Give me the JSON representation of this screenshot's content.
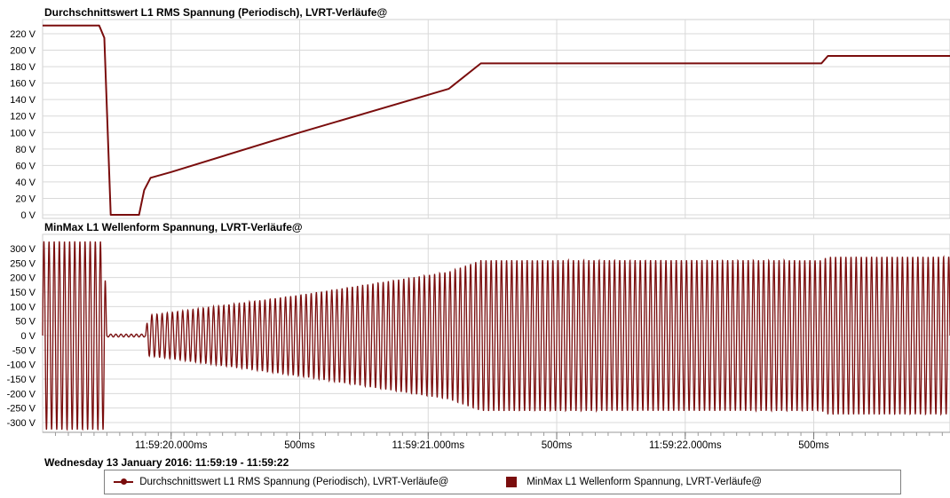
{
  "chart_data": [
    {
      "type": "line",
      "title": "Durchschnittswert L1 RMS Spannung (Periodisch), LVRT-Verläufe@",
      "y_unit": "V",
      "ylim": [
        0,
        230
      ],
      "y_ticks": [
        "0 V",
        "20 V",
        "40 V",
        "60 V",
        "80 V",
        "100 V",
        "120 V",
        "140 V",
        "160 V",
        "180 V",
        "200 V",
        "220 V"
      ],
      "grid": true,
      "series": [
        {
          "name": "Durchschnittswert L1 RMS Spannung (Periodisch), LVRT-Verläufe@",
          "color": "#7a0d0d",
          "points": [
            {
              "t": 19.0,
              "v": 230
            },
            {
              "t": 19.22,
              "v": 230
            },
            {
              "t": 19.24,
              "v": 215
            },
            {
              "t": 19.265,
              "v": 0
            },
            {
              "t": 19.375,
              "v": 0
            },
            {
              "t": 19.395,
              "v": 30
            },
            {
              "t": 19.42,
              "v": 45
            },
            {
              "t": 19.5,
              "v": 52
            },
            {
              "t": 20.0,
              "v": 100
            },
            {
              "t": 20.58,
              "v": 153
            },
            {
              "t": 20.705,
              "v": 184
            },
            {
              "t": 22.03,
              "v": 184
            },
            {
              "t": 22.055,
              "v": 193
            },
            {
              "t": 22.53,
              "v": 193
            }
          ]
        }
      ]
    },
    {
      "type": "line",
      "title": "MinMax L1 Wellenform Spannung, LVRT-Verläufe@",
      "y_unit": "V",
      "ylim": [
        -325,
        325
      ],
      "y_ticks": [
        "-300 V",
        "-250 V",
        "-200 V",
        "-150 V",
        "-100 V",
        "-50 V",
        "0 V",
        "50 V",
        "100 V",
        "150 V",
        "200 V",
        "250 V",
        "300 V"
      ],
      "grid": true,
      "x_ticks": [
        "11:59:20.000ms",
        "500ms",
        "11:59:21.000ms",
        "500ms",
        "11:59:22.000ms",
        "500ms"
      ],
      "x_tick_times": [
        19.5,
        20.0,
        20.5,
        21.0,
        21.5,
        22.0
      ],
      "xlim": [
        19.0,
        22.53
      ],
      "series": [
        {
          "name": "MinMax L1 Wellenform Spannung, LVRT-Verläufe@",
          "color": "#7a0d0d",
          "frequency_hz": 50,
          "amplitude_envelope": [
            {
              "t": 19.0,
              "a": 325
            },
            {
              "t": 19.24,
              "a": 325
            },
            {
              "t": 19.25,
              "a": 5
            },
            {
              "t": 19.4,
              "a": 5
            },
            {
              "t": 19.41,
              "a": 70
            },
            {
              "t": 19.5,
              "a": 80
            },
            {
              "t": 20.0,
              "a": 140
            },
            {
              "t": 20.58,
              "a": 220
            },
            {
              "t": 20.705,
              "a": 260
            },
            {
              "t": 22.03,
              "a": 260
            },
            {
              "t": 22.055,
              "a": 272
            },
            {
              "t": 22.53,
              "a": 272
            }
          ]
        }
      ]
    }
  ],
  "date_range": "Wednesday 13 January 2016: 11:59:19 - 11:59:22",
  "legend": [
    {
      "label": "Durchschnittswert L1 RMS Spannung (Periodisch), LVRT-Verläufe@",
      "marker": "line-dot"
    },
    {
      "label": "MinMax L1 Wellenform Spannung, LVRT-Verläufe@",
      "marker": "box"
    }
  ]
}
